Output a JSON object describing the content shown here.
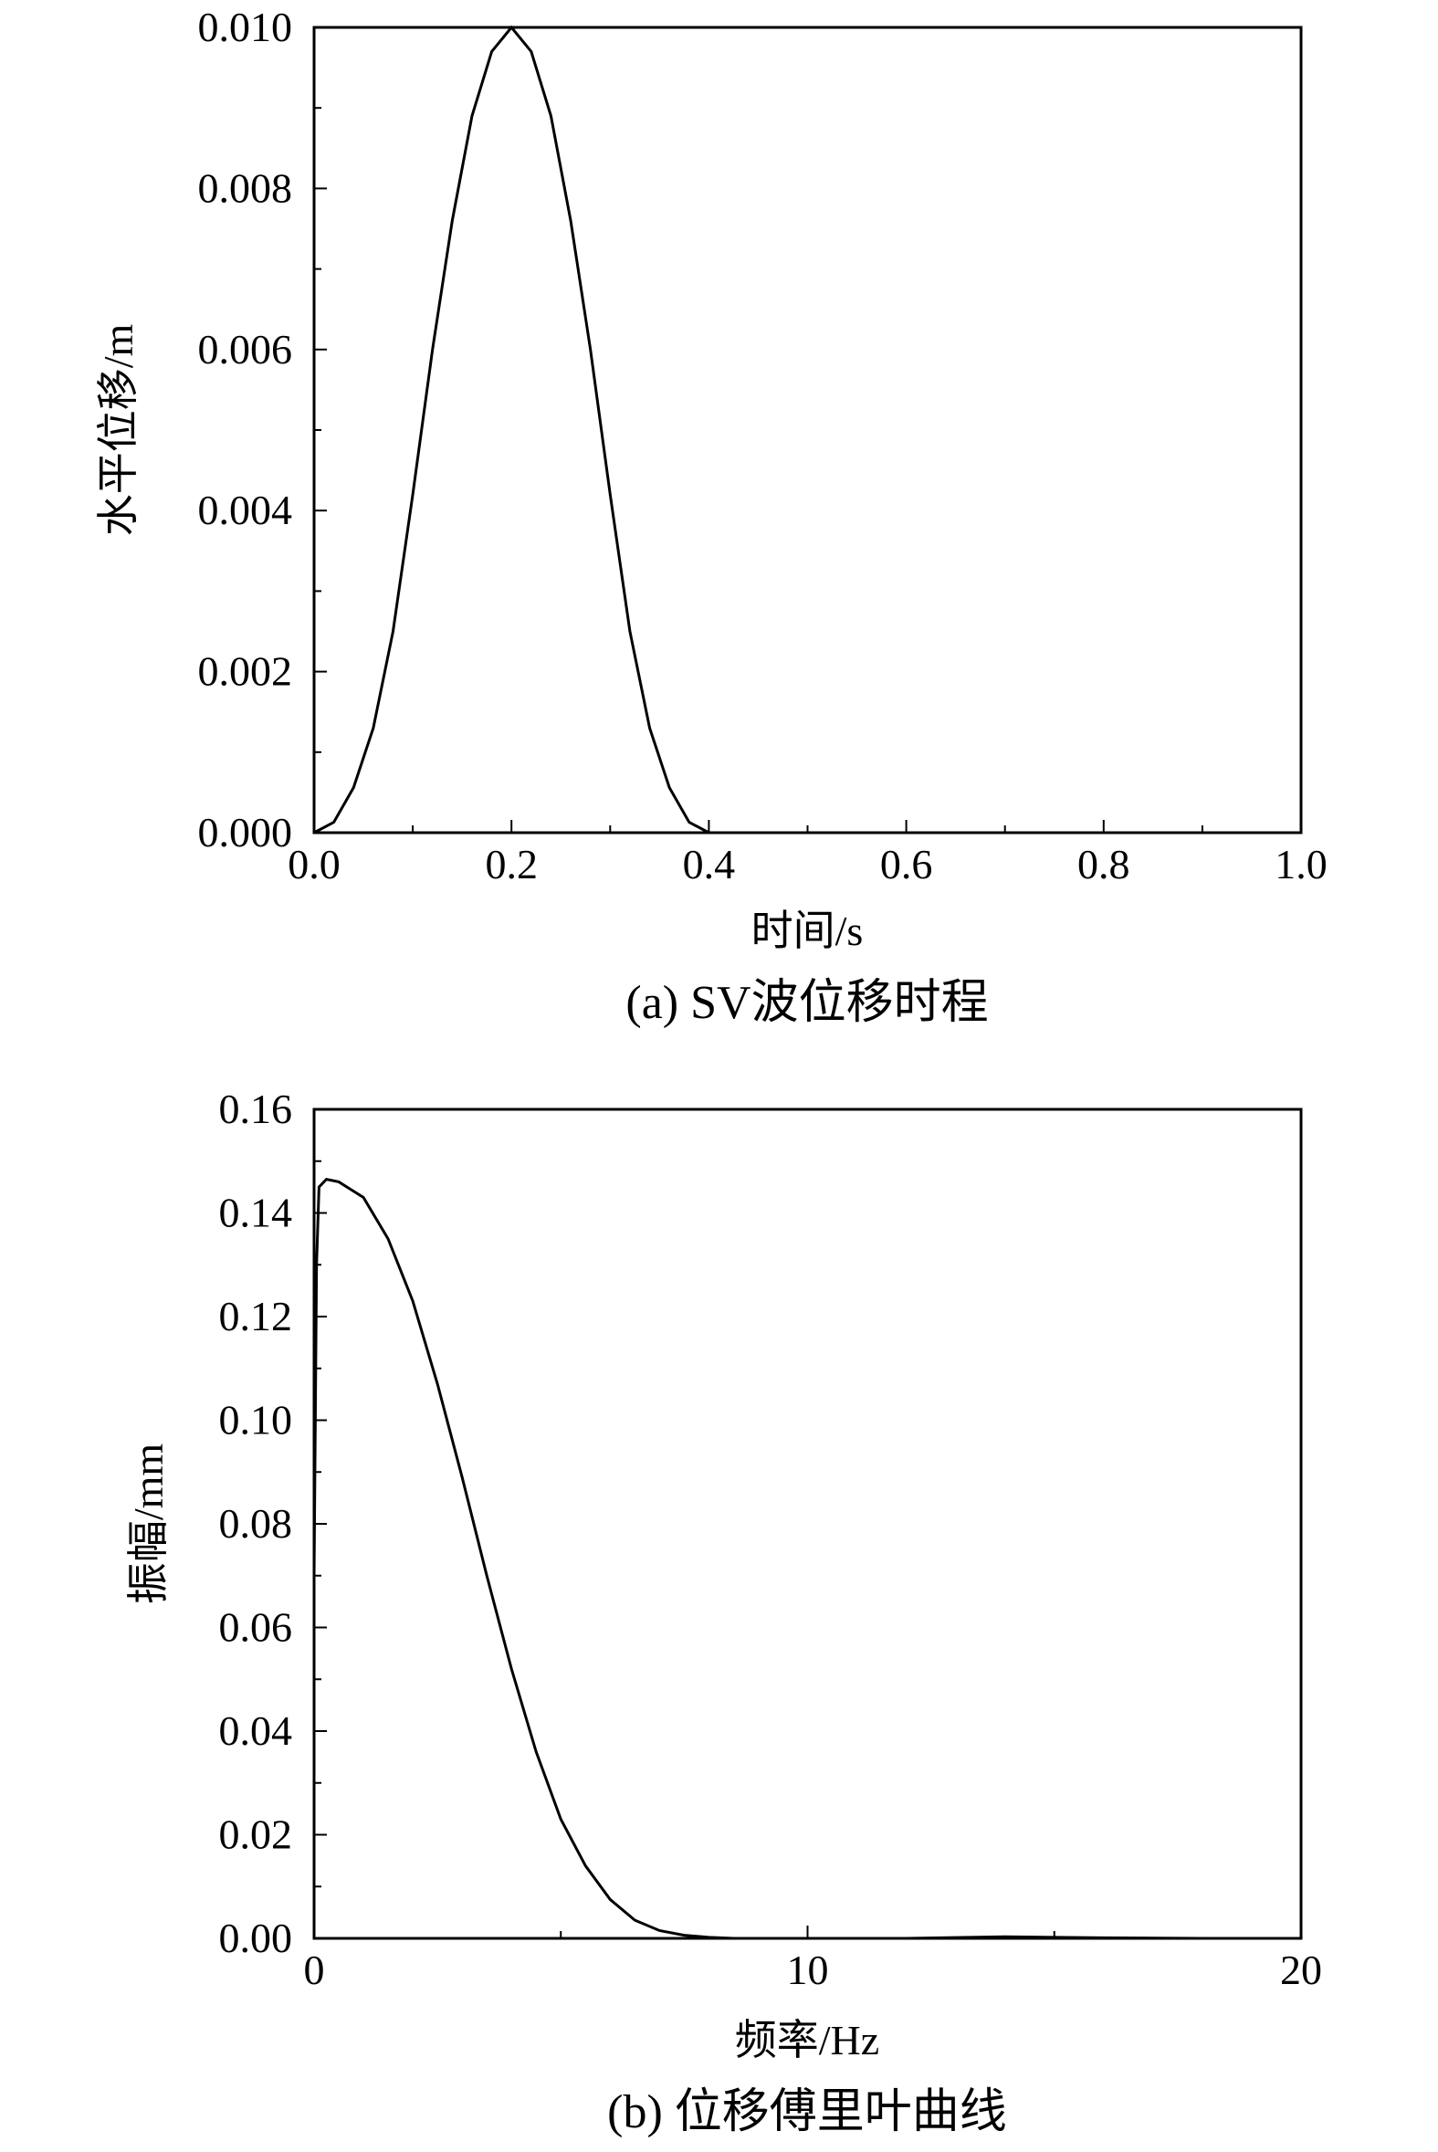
{
  "chart_data": [
    {
      "type": "line",
      "caption": "(a) SV波位移时程",
      "xlabel": "时间/s",
      "ylabel": "水平位移/m",
      "xlim": [
        0.0,
        1.0
      ],
      "ylim": [
        0.0,
        0.01
      ],
      "x_ticks": [
        "0.0",
        "0.2",
        "0.4",
        "0.6",
        "0.8",
        "1.0"
      ],
      "y_ticks": [
        "0.000",
        "0.002",
        "0.004",
        "0.006",
        "0.008",
        "0.010"
      ],
      "series": [
        {
          "x": [
            0.0,
            0.02,
            0.04,
            0.06,
            0.08,
            0.1,
            0.12,
            0.14,
            0.16,
            0.18,
            0.2,
            0.22,
            0.24,
            0.26,
            0.28,
            0.3,
            0.32,
            0.34,
            0.36,
            0.38,
            0.4,
            0.5,
            0.6,
            0.7,
            0.8,
            0.9,
            1.0
          ],
          "y": [
            0.0,
            0.00013,
            0.00056,
            0.0013,
            0.0025,
            0.0042,
            0.006,
            0.0076,
            0.0089,
            0.0097,
            0.01,
            0.0097,
            0.0089,
            0.0076,
            0.006,
            0.0042,
            0.0025,
            0.0013,
            0.00056,
            0.00013,
            0.0,
            0.0,
            0.0,
            0.0,
            0.0,
            0.0,
            0.0
          ]
        }
      ]
    },
    {
      "type": "line",
      "caption": "(b) 位移傅里叶曲线",
      "xlabel": "频率/Hz",
      "ylabel": "振幅/mm",
      "xlim": [
        0,
        20
      ],
      "ylim": [
        0.0,
        0.16
      ],
      "x_ticks": [
        "0",
        "10",
        "20"
      ],
      "y_ticks": [
        "0.00",
        "0.02",
        "0.04",
        "0.06",
        "0.08",
        "0.10",
        "0.12",
        "0.14",
        "0.16"
      ],
      "series": [
        {
          "x": [
            0.0,
            0.05,
            0.1,
            0.25,
            0.5,
            1.0,
            1.5,
            2.0,
            2.5,
            3.0,
            3.5,
            4.0,
            4.5,
            5.0,
            5.5,
            6.0,
            6.5,
            7.0,
            7.5,
            8.0,
            8.5,
            9.0,
            10.0,
            12.0,
            14.0,
            16.0,
            18.0,
            20.0
          ],
          "y": [
            0.07,
            0.13,
            0.145,
            0.1465,
            0.146,
            0.143,
            0.135,
            0.123,
            0.107,
            0.089,
            0.07,
            0.052,
            0.036,
            0.023,
            0.014,
            0.0075,
            0.0035,
            0.0015,
            0.0006,
            0.0002,
            0.0,
            0.0,
            0.0,
            0.0,
            0.0003,
            0.0001,
            0.0,
            0.0
          ]
        }
      ]
    }
  ]
}
